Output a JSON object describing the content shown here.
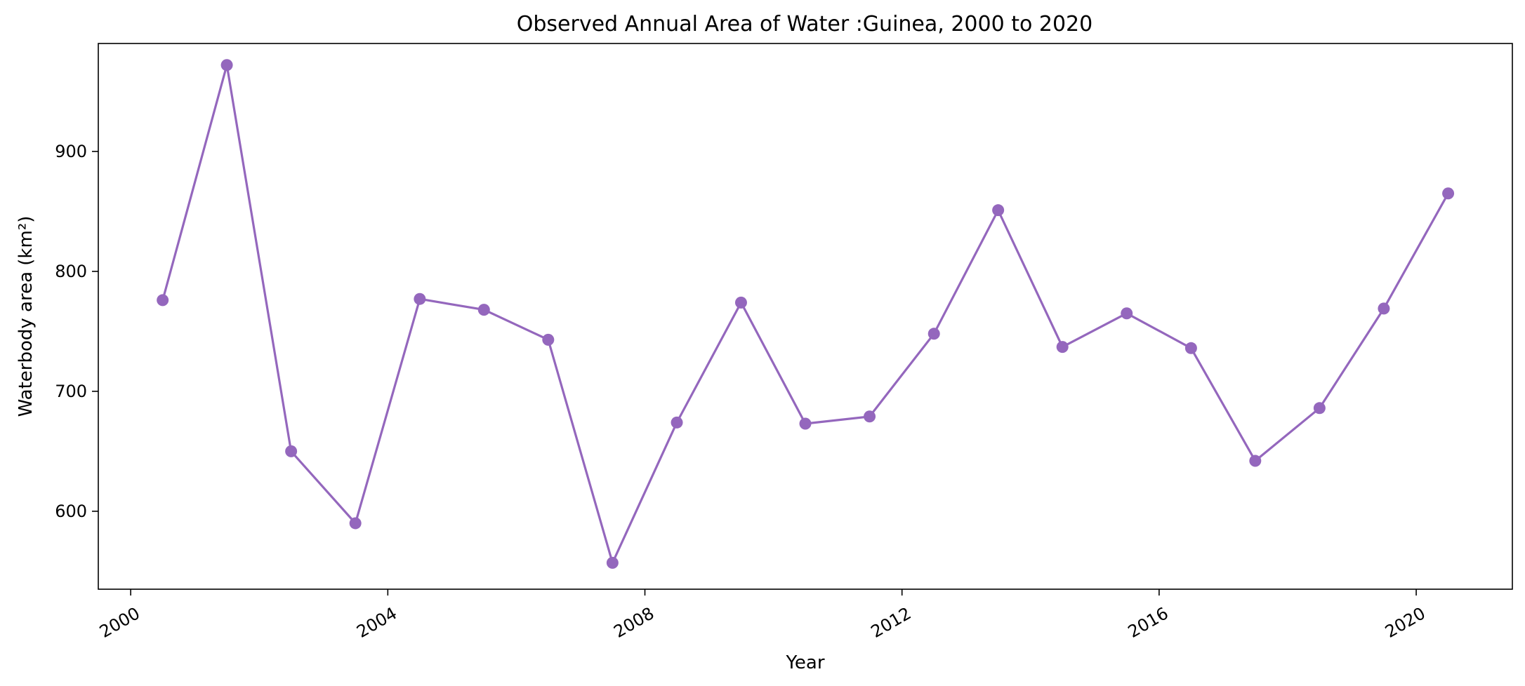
{
  "chart_data": {
    "type": "line",
    "title": "Observed Annual Area of Water :Guinea, 2000 to 2020",
    "xlabel": "Year",
    "ylabel": "Waterbody area (km²)",
    "x_ticks": [
      "2000",
      "2004",
      "2008",
      "2012",
      "2016",
      "2020"
    ],
    "y_ticks": [
      600,
      700,
      800,
      900
    ],
    "xlim": [
      "1999-07-01",
      "2021-07-01"
    ],
    "ylim": [
      535,
      990
    ],
    "grid": false,
    "legend": "none",
    "color": "#9467bd",
    "series": [
      {
        "x": [
          "2000-07-01",
          "2001-07-01",
          "2002-07-01",
          "2003-07-01",
          "2004-07-01",
          "2005-07-01",
          "2006-07-01",
          "2007-07-01",
          "2008-07-01",
          "2009-07-01",
          "2010-07-01",
          "2011-07-01",
          "2012-07-01",
          "2013-07-01",
          "2014-07-01",
          "2015-07-01",
          "2016-07-01",
          "2017-07-01",
          "2018-07-01",
          "2019-07-01",
          "2020-07-01"
        ],
        "values": [
          776,
          972,
          650,
          590,
          777,
          768,
          743,
          557,
          674,
          774,
          673,
          679,
          748,
          851,
          737,
          765,
          736,
          642,
          686,
          769,
          865
        ]
      }
    ]
  }
}
